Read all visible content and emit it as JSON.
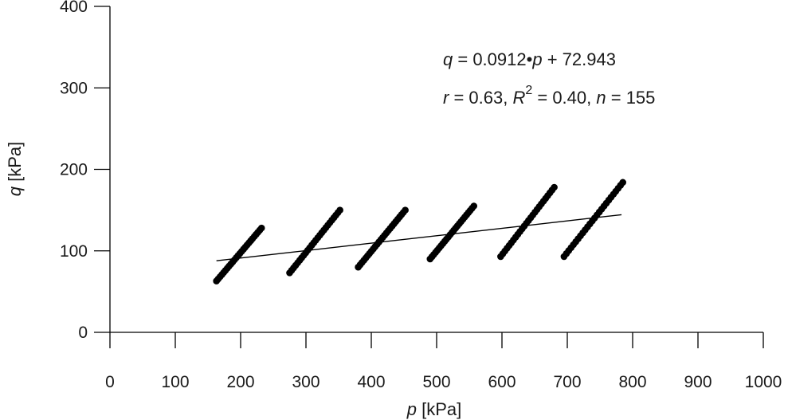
{
  "chart_data": {
    "type": "scatter",
    "title": "",
    "xlabel": {
      "var": "p",
      "unit": " [kPa]"
    },
    "ylabel": {
      "var": "q",
      "unit": " [kPa]"
    },
    "xlim": [
      0,
      1000
    ],
    "ylim": [
      0,
      400
    ],
    "xticks": [
      "0",
      "100",
      "200",
      "300",
      "400",
      "500",
      "600",
      "700",
      "800",
      "900",
      "1000"
    ],
    "yticks": [
      "0",
      "100",
      "200",
      "300",
      "400"
    ],
    "annotation": {
      "line1": {
        "q": "q",
        "eq_part": " = 0.0912•",
        "p": "p",
        "rest": " + 72.943"
      },
      "line2": {
        "r": "r",
        "r_val": " = 0.63, ",
        "R": "R",
        "sup": "2",
        "R2_val": " = 0.40, ",
        "n": "n",
        "n_val": " = 155"
      }
    },
    "trendline": {
      "slope": 0.0912,
      "intercept": 72.943,
      "x_range": [
        163,
        783
      ]
    },
    "series": [
      {
        "clusters": [
          {
            "x_range": [
              163,
              232
            ],
            "y_range": [
              63,
              128
            ],
            "n": 26
          },
          {
            "x_range": [
              275,
              352
            ],
            "y_range": [
              73,
              150
            ],
            "n": 26
          },
          {
            "x_range": [
              380,
              452
            ],
            "y_range": [
              80,
              150
            ],
            "n": 26
          },
          {
            "x_range": [
              490,
              557
            ],
            "y_range": [
              90,
              155
            ],
            "n": 25
          },
          {
            "x_range": [
              598,
              680
            ],
            "y_range": [
              93,
              178
            ],
            "n": 26
          },
          {
            "x_range": [
              695,
              785
            ],
            "y_range": [
              93,
              184
            ],
            "n": 26
          }
        ]
      }
    ],
    "grid": false,
    "legend": "none"
  }
}
